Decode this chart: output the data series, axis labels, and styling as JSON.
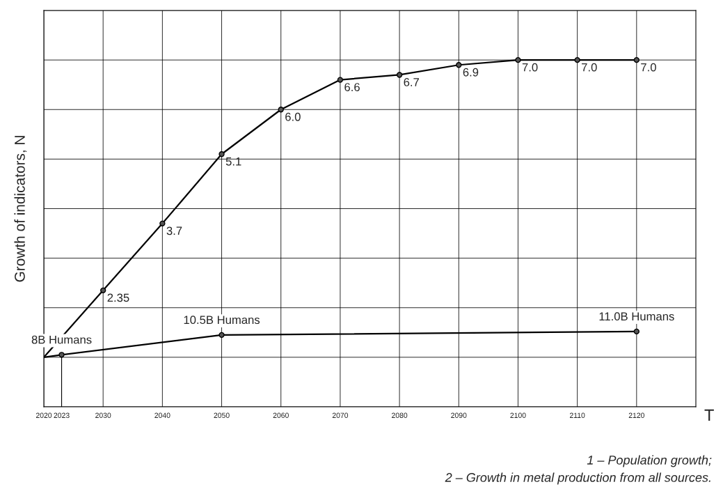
{
  "chart_data": {
    "type": "line",
    "xlabel": "T",
    "ylabel": "Growth of indicators, N",
    "xlim": [
      2020,
      2130
    ],
    "ylim": [
      0,
      8
    ],
    "xticks": [
      {
        "value": 2020,
        "label": "2020"
      },
      2023,
      2030,
      2040,
      2050,
      2060,
      2070,
      2080,
      2090,
      2100,
      2110,
      2120
    ],
    "yticks": [
      {
        "value": 0,
        "label": null
      },
      {
        "value": 1,
        "label": null
      },
      {
        "value": 2,
        "label": null
      },
      {
        "value": 3,
        "label": null
      },
      {
        "value": 4,
        "label": null
      },
      {
        "value": 5,
        "label": null
      },
      {
        "value": 6,
        "label": null
      },
      {
        "value": 7,
        "label": null
      },
      {
        "value": 8,
        "label": null
      }
    ],
    "grid": true,
    "marker": "circle",
    "line_style": "solid",
    "tick_labels": "x",
    "ref_lines": [
      {
        "axis": "x",
        "value": 2023,
        "color": "#000000"
      }
    ],
    "series": [
      {
        "color": "#000000",
        "x": [
          2020,
          2023,
          2050,
          2120
        ],
        "values": [
          1.0,
          1.05,
          1.45,
          1.52
        ]
      },
      {
        "color": "#000000",
        "x": [
          2020,
          2030,
          2040,
          2050,
          2060,
          2070,
          2080,
          2090,
          2100,
          2110,
          2120
        ],
        "values": [
          1.0,
          2.35,
          3.7,
          5.1,
          6.0,
          6.6,
          6.7,
          6.9,
          7.0,
          7.0,
          7.0
        ],
        "value_labels": [
          null,
          "2.35",
          "3.7",
          "5.1",
          "6.0",
          "6.6",
          "6.7",
          "6.9",
          "7.0",
          "7.0",
          "7.0"
        ]
      }
    ],
    "annotations": [
      {
        "text": "8B Humans",
        "x": 2023,
        "y": 1.05
      },
      {
        "text": "10.5B Humans",
        "x": 2050,
        "y": 1.45
      },
      {
        "text": "11.0B Humans",
        "x": 2120,
        "y": 1.52
      },
      "1 – Population growth;",
      "2 – Growth in metal production from all sources."
    ]
  }
}
